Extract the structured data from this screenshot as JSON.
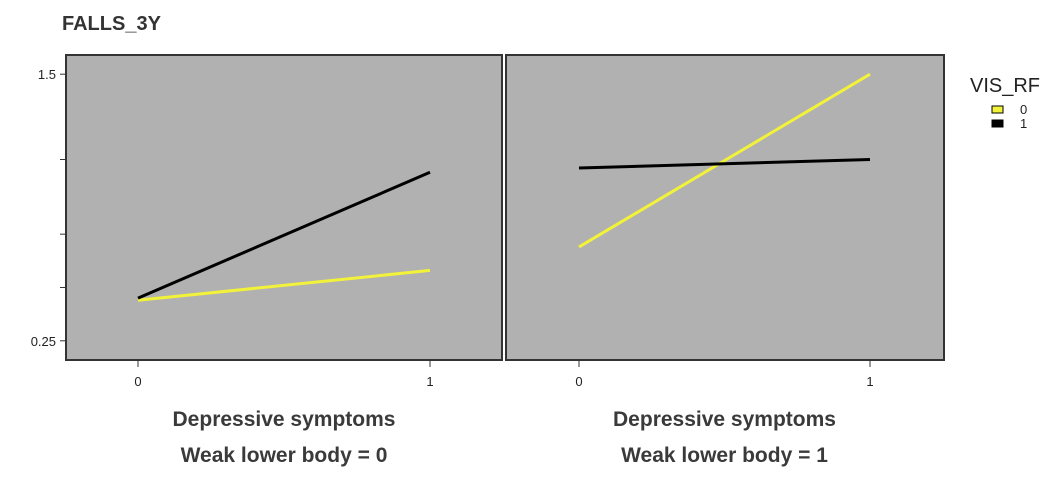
{
  "chart_data": {
    "type": "line",
    "title": "FALLS_3Y",
    "legend": {
      "title": "VIS_RF",
      "placement": "right",
      "entries": [
        {
          "label": "0",
          "color": "#f2f23a"
        },
        {
          "label": "1",
          "color": "#000000"
        }
      ]
    },
    "y_ticks": [
      "1.5",
      "0.25"
    ],
    "ylim": [
      0.16,
      1.59
    ],
    "panels": [
      {
        "xlabel": "Depressive symptoms",
        "facet_label": "Weak lower body = 0",
        "x_ticks": [
          "0",
          "1"
        ],
        "series": [
          {
            "name": "0",
            "color": "#f2f23a",
            "x": [
              0,
              1
            ],
            "y": [
              0.44,
              0.58
            ]
          },
          {
            "name": "1",
            "color": "#000000",
            "x": [
              0,
              1
            ],
            "y": [
              0.45,
              1.04
            ]
          }
        ]
      },
      {
        "xlabel": "Depressive symptoms",
        "facet_label": "Weak lower body = 1",
        "x_ticks": [
          "0",
          "1"
        ],
        "series": [
          {
            "name": "0",
            "color": "#f2f23a",
            "x": [
              0,
              1
            ],
            "y": [
              0.69,
              1.5
            ]
          },
          {
            "name": "1",
            "color": "#000000",
            "x": [
              0,
              1
            ],
            "y": [
              1.06,
              1.1
            ]
          }
        ]
      }
    ]
  }
}
